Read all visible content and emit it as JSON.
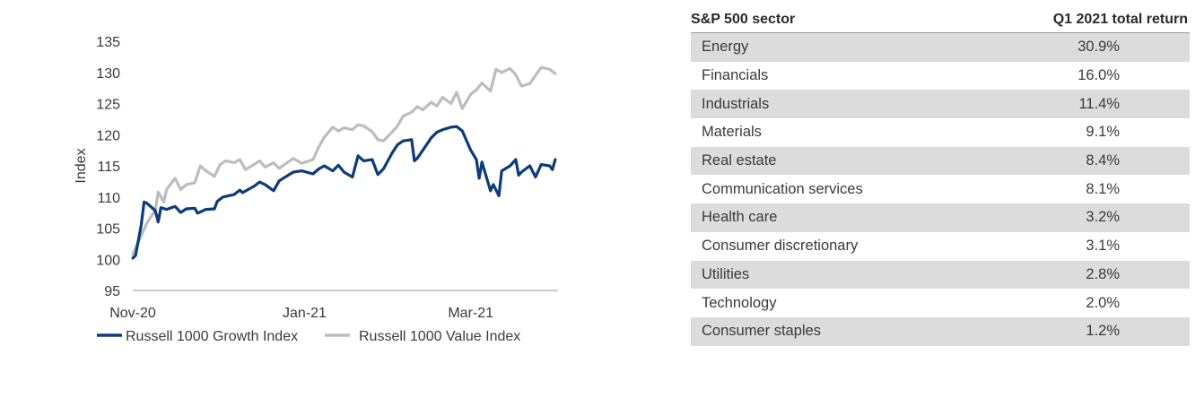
{
  "chart_data": {
    "type": "line",
    "ylabel": "Index",
    "ylim": [
      95,
      135
    ],
    "yticks": [
      95,
      100,
      105,
      110,
      115,
      120,
      125,
      130,
      135
    ],
    "x_range": [
      "2020-11-01",
      "2021-04-01"
    ],
    "xticks": [
      {
        "label": "Nov-20",
        "date": "2020-11-01"
      },
      {
        "label": "Jan-21",
        "date": "2021-01-01"
      },
      {
        "label": "Mar-21",
        "date": "2021-03-01"
      }
    ],
    "grid": false,
    "legend_position": "bottom",
    "series": [
      {
        "name": "Russell 1000 Growth Index",
        "color": "#0d3b7a",
        "points": [
          [
            "2020-11-01",
            100.2
          ],
          [
            "2020-11-02",
            100.6
          ],
          [
            "2020-11-04",
            105.5
          ],
          [
            "2020-11-05",
            109.2
          ],
          [
            "2020-11-06",
            109.0
          ],
          [
            "2020-11-09",
            107.8
          ],
          [
            "2020-11-10",
            106.0
          ],
          [
            "2020-11-11",
            108.3
          ],
          [
            "2020-11-13",
            108.0
          ],
          [
            "2020-11-16",
            108.5
          ],
          [
            "2020-11-18",
            107.5
          ],
          [
            "2020-11-20",
            108.1
          ],
          [
            "2020-11-23",
            108.2
          ],
          [
            "2020-11-24",
            107.4
          ],
          [
            "2020-11-27",
            108.0
          ],
          [
            "2020-11-30",
            108.1
          ],
          [
            "2020-12-01",
            109.3
          ],
          [
            "2020-12-03",
            110.0
          ],
          [
            "2020-12-07",
            110.4
          ],
          [
            "2020-12-09",
            111.1
          ],
          [
            "2020-12-10",
            110.7
          ],
          [
            "2020-12-14",
            111.7
          ],
          [
            "2020-12-16",
            112.4
          ],
          [
            "2020-12-18",
            112.0
          ],
          [
            "2020-12-21",
            111.0
          ],
          [
            "2020-12-23",
            112.6
          ],
          [
            "2020-12-28",
            114.0
          ],
          [
            "2020-12-31",
            114.2
          ],
          [
            "2021-01-04",
            113.7
          ],
          [
            "2021-01-06",
            114.5
          ],
          [
            "2021-01-08",
            115.0
          ],
          [
            "2021-01-11",
            114.2
          ],
          [
            "2021-01-13",
            115.1
          ],
          [
            "2021-01-15",
            114.0
          ],
          [
            "2021-01-18",
            113.2
          ],
          [
            "2021-01-20",
            116.6
          ],
          [
            "2021-01-22",
            115.8
          ],
          [
            "2021-01-25",
            116.0
          ],
          [
            "2021-01-27",
            113.6
          ],
          [
            "2021-01-29",
            114.5
          ],
          [
            "2021-02-01",
            117.0
          ],
          [
            "2021-02-03",
            118.4
          ],
          [
            "2021-02-05",
            119.0
          ],
          [
            "2021-02-08",
            119.2
          ],
          [
            "2021-02-09",
            115.8
          ],
          [
            "2021-02-10",
            116.2
          ],
          [
            "2021-02-12",
            117.5
          ],
          [
            "2021-02-15",
            119.5
          ],
          [
            "2021-02-17",
            120.4
          ],
          [
            "2021-02-19",
            120.8
          ],
          [
            "2021-02-22",
            121.2
          ],
          [
            "2021-02-24",
            121.3
          ],
          [
            "2021-02-26",
            120.6
          ],
          [
            "2021-03-01",
            117.5
          ],
          [
            "2021-03-03",
            116.0
          ],
          [
            "2021-03-04",
            113.0
          ],
          [
            "2021-03-05",
            115.6
          ],
          [
            "2021-03-08",
            111.0
          ],
          [
            "2021-03-09",
            112.0
          ],
          [
            "2021-03-11",
            110.2
          ],
          [
            "2021-03-12",
            114.2
          ],
          [
            "2021-03-15",
            115.0
          ],
          [
            "2021-03-17",
            116.0
          ],
          [
            "2021-03-18",
            113.5
          ],
          [
            "2021-03-19",
            114.0
          ],
          [
            "2021-03-22",
            115.0
          ],
          [
            "2021-03-24",
            113.2
          ],
          [
            "2021-03-26",
            115.2
          ],
          [
            "2021-03-29",
            115.0
          ],
          [
            "2021-03-30",
            114.4
          ],
          [
            "2021-03-31",
            116.0
          ]
        ]
      },
      {
        "name": "Russell 1000 Value Index",
        "color": "#bdbdbd",
        "points": [
          [
            "2020-11-01",
            100.8
          ],
          [
            "2020-11-02",
            101.8
          ],
          [
            "2020-11-04",
            103.8
          ],
          [
            "2020-11-06",
            105.8
          ],
          [
            "2020-11-09",
            107.9
          ],
          [
            "2020-11-10",
            110.8
          ],
          [
            "2020-11-12",
            109.2
          ],
          [
            "2020-11-13",
            111.2
          ],
          [
            "2020-11-16",
            113.0
          ],
          [
            "2020-11-18",
            111.2
          ],
          [
            "2020-11-20",
            112.0
          ],
          [
            "2020-11-23",
            112.3
          ],
          [
            "2020-11-25",
            115.0
          ],
          [
            "2020-11-27",
            114.2
          ],
          [
            "2020-11-30",
            113.3
          ],
          [
            "2020-12-02",
            115.2
          ],
          [
            "2020-12-04",
            115.8
          ],
          [
            "2020-12-07",
            115.5
          ],
          [
            "2020-12-09",
            116.0
          ],
          [
            "2020-12-11",
            114.4
          ],
          [
            "2020-12-14",
            115.2
          ],
          [
            "2020-12-16",
            115.8
          ],
          [
            "2020-12-18",
            114.8
          ],
          [
            "2020-12-21",
            115.5
          ],
          [
            "2020-12-23",
            114.6
          ],
          [
            "2020-12-28",
            116.2
          ],
          [
            "2020-12-31",
            115.4
          ],
          [
            "2021-01-04",
            116.0
          ],
          [
            "2021-01-06",
            118.0
          ],
          [
            "2021-01-08",
            119.6
          ],
          [
            "2021-01-11",
            121.2
          ],
          [
            "2021-01-13",
            120.6
          ],
          [
            "2021-01-15",
            121.1
          ],
          [
            "2021-01-18",
            120.8
          ],
          [
            "2021-01-20",
            121.6
          ],
          [
            "2021-01-22",
            121.4
          ],
          [
            "2021-01-25",
            120.5
          ],
          [
            "2021-01-27",
            119.2
          ],
          [
            "2021-01-29",
            119.0
          ],
          [
            "2021-02-01",
            120.4
          ],
          [
            "2021-02-03",
            121.4
          ],
          [
            "2021-02-05",
            123.0
          ],
          [
            "2021-02-08",
            123.6
          ],
          [
            "2021-02-10",
            124.5
          ],
          [
            "2021-02-12",
            124.0
          ],
          [
            "2021-02-15",
            125.2
          ],
          [
            "2021-02-17",
            124.6
          ],
          [
            "2021-02-19",
            126.0
          ],
          [
            "2021-02-22",
            125.0
          ],
          [
            "2021-02-24",
            126.8
          ],
          [
            "2021-02-26",
            124.2
          ],
          [
            "2021-03-01",
            126.5
          ],
          [
            "2021-03-03",
            127.2
          ],
          [
            "2021-03-05",
            128.3
          ],
          [
            "2021-03-08",
            127.0
          ],
          [
            "2021-03-10",
            130.5
          ],
          [
            "2021-03-12",
            130.0
          ],
          [
            "2021-03-15",
            130.6
          ],
          [
            "2021-03-17",
            129.6
          ],
          [
            "2021-03-19",
            127.8
          ],
          [
            "2021-03-22",
            128.2
          ],
          [
            "2021-03-24",
            129.5
          ],
          [
            "2021-03-26",
            130.8
          ],
          [
            "2021-03-29",
            130.5
          ],
          [
            "2021-03-31",
            129.8
          ]
        ]
      }
    ]
  },
  "table": {
    "headers": [
      "S&P 500 sector",
      "Q1 2021 total return"
    ],
    "rows": [
      {
        "sector": "Energy",
        "return": "30.9%"
      },
      {
        "sector": "Financials",
        "return": "16.0%"
      },
      {
        "sector": "Industrials",
        "return": "11.4%"
      },
      {
        "sector": "Materials",
        "return": "9.1%"
      },
      {
        "sector": "Real estate",
        "return": "8.4%"
      },
      {
        "sector": "Communication services",
        "return": "8.1%"
      },
      {
        "sector": "Health care",
        "return": "3.2%"
      },
      {
        "sector": "Consumer discretionary",
        "return": "3.1%"
      },
      {
        "sector": "Utilities",
        "return": "2.8%"
      },
      {
        "sector": "Technology",
        "return": "2.0%"
      },
      {
        "sector": "Consumer staples",
        "return": "1.2%"
      }
    ],
    "shade_color": "#dcdcdc"
  }
}
